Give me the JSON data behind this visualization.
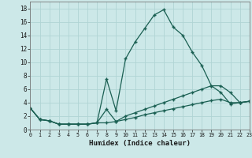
{
  "xlabel": "Humidex (Indice chaleur)",
  "bg_color": "#cce8e8",
  "grid_color": "#b0d4d4",
  "line_color": "#1a5f52",
  "line1_x": [
    0,
    1,
    2,
    3,
    4,
    5,
    6,
    7,
    8,
    9,
    10,
    11,
    12,
    13,
    14,
    15,
    16,
    17,
    18,
    19,
    20,
    21,
    22,
    23
  ],
  "line1_y": [
    3.2,
    1.5,
    1.3,
    0.8,
    0.8,
    0.8,
    0.8,
    1.0,
    7.5,
    2.8,
    10.5,
    13.0,
    15.0,
    17.0,
    17.8,
    15.2,
    14.0,
    11.5,
    9.5,
    6.5,
    5.5,
    3.8,
    4.0,
    4.2
  ],
  "line2_x": [
    0,
    1,
    2,
    3,
    4,
    5,
    6,
    7,
    8,
    9,
    10,
    11,
    12,
    13,
    14,
    15,
    16,
    17,
    18,
    19,
    20,
    21,
    22,
    23
  ],
  "line2_y": [
    3.2,
    1.5,
    1.3,
    0.8,
    0.8,
    0.8,
    0.8,
    1.0,
    3.0,
    1.2,
    2.0,
    2.5,
    3.0,
    3.5,
    4.0,
    4.5,
    5.0,
    5.5,
    6.0,
    6.5,
    6.5,
    5.5,
    4.0,
    4.2
  ],
  "line3_x": [
    0,
    1,
    2,
    3,
    4,
    5,
    6,
    7,
    8,
    9,
    10,
    11,
    12,
    13,
    14,
    15,
    16,
    17,
    18,
    19,
    20,
    21,
    22,
    23
  ],
  "line3_y": [
    3.2,
    1.5,
    1.3,
    0.8,
    0.8,
    0.8,
    0.8,
    1.0,
    1.0,
    1.2,
    1.5,
    1.8,
    2.2,
    2.5,
    2.8,
    3.1,
    3.4,
    3.7,
    4.0,
    4.3,
    4.5,
    4.0,
    4.0,
    4.2
  ],
  "ylim": [
    0,
    19
  ],
  "xlim": [
    0,
    23
  ],
  "yticks": [
    0,
    2,
    4,
    6,
    8,
    10,
    12,
    14,
    16,
    18
  ],
  "xticks": [
    0,
    1,
    2,
    3,
    4,
    5,
    6,
    7,
    8,
    9,
    10,
    11,
    12,
    13,
    14,
    15,
    16,
    17,
    18,
    19,
    20,
    21,
    22,
    23
  ]
}
